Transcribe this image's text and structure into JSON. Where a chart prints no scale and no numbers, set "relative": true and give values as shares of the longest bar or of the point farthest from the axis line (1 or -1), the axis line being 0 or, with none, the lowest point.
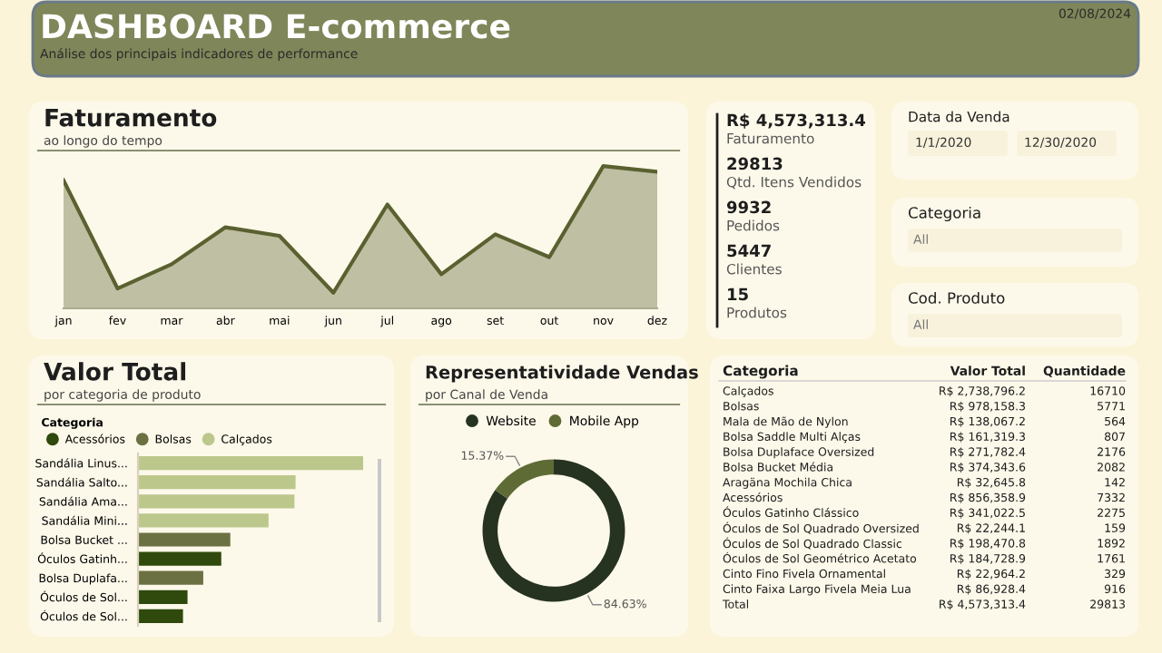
{
  "chart_data": [
    {
      "type": "other",
      "title": "DASHBOARD E-commerce",
      "subtitle": "Análise dos principais indicadores de performance",
      "annotations": [
        "02/08/2024"
      ]
    },
    {
      "type": "area",
      "title": "Faturamento",
      "subtitle": "ao longo do tempo",
      "relative": true,
      "categories": [
        "jan",
        "fev",
        "mar",
        "abr",
        "mai",
        "jun",
        "jul",
        "ago",
        "set",
        "out",
        "nov",
        "dez"
      ],
      "color": "#5a6130",
      "values": [
        0.9,
        0.14,
        0.31,
        0.57,
        0.51,
        0.11,
        0.73,
        0.24,
        0.52,
        0.36,
        1.0,
        0.96
      ]
    },
    {
      "type": "other",
      "annotations": [
        "R$ 4,573,313.4",
        "Faturamento",
        "29813",
        "Qtd. Itens Vendidos",
        "9932",
        "Pedidos",
        "5447",
        "Clientes",
        "15",
        "Produtos"
      ]
    },
    {
      "type": "other",
      "title": "Data da Venda",
      "annotations": [
        "1/1/2020",
        "12/30/2020"
      ]
    },
    {
      "type": "other",
      "title": "Categoria",
      "annotations": [
        "All"
      ]
    },
    {
      "type": "other",
      "title": "Cod. Produto",
      "annotations": [
        "All"
      ]
    },
    {
      "type": "bar",
      "title": "Valor Total",
      "subtitle": "por categoria de produto",
      "orientation": "horizontal",
      "relative": true,
      "stacked": true,
      "legend": "top left",
      "legend_title": "Categoria",
      "categories": [
        "Sandália Linus...",
        "Sandália Salto...",
        "Sandália Ama...",
        "Sandália Mini...",
        "Bolsa Bucket ...",
        "Óculos Gatinh...",
        "Bolsa Duplafa...",
        "Óculos de Sol...",
        "Óculos de Sol..."
      ],
      "series": [
        {
          "name": "Acessórios",
          "color": "#2f4a0c",
          "values": [
            null,
            null,
            null,
            null,
            null,
            0.37,
            null,
            0.22,
            0.2
          ]
        },
        {
          "name": "Bolsas",
          "color": "#6b7142",
          "values": [
            null,
            null,
            null,
            null,
            0.41,
            null,
            0.29,
            null,
            null
          ]
        },
        {
          "name": "Calçados",
          "color": "#bcc78c",
          "values": [
            1.0,
            0.7,
            0.695,
            0.58,
            null,
            null,
            null,
            null,
            null
          ]
        }
      ]
    },
    {
      "type": "donut",
      "title": "Representatividade Vendas",
      "subtitle": "por Canal de Venda",
      "legend": "top",
      "categories": [
        "Website",
        "Mobile App"
      ],
      "values": [
        84.63,
        15.37
      ],
      "colors": [
        "#263320",
        "#5e6b35"
      ],
      "value_labels": [
        "84.63%",
        "15.37%"
      ]
    },
    {
      "type": "other",
      "title": "Categoria",
      "categories": [
        "Calçados",
        "Bolsas",
        "Mala de Mão de Nylon",
        "Bolsa Saddle Multi Alças",
        "Bolsa Duplaface Oversized",
        "Bolsa Bucket Média",
        "Aragäna Mochila Chica",
        "Acessórios",
        "Óculos Gatinho Clássico",
        "Óculos de Sol Quadrado Oversized",
        "Óculos de Sol Quadrado Classic",
        "Óculos de Sol Geométrico Acetato",
        "Cinto Fino Fivela Ornamental",
        "Cinto Faixa Largo Fivela Meia Lua",
        "Total"
      ],
      "series": [
        {
          "name": "Valor Total",
          "values": [
            2738796.2,
            978158.3,
            138067.2,
            161319.3,
            271782.4,
            374343.6,
            32645.8,
            856358.9,
            341022.5,
            22244.1,
            198470.8,
            184728.9,
            22964.2,
            86928.4,
            4573313.4
          ],
          "value_labels": [
            "R$ 2,738,796.2",
            "R$ 978,158.3",
            "R$ 138,067.2",
            "R$ 161,319.3",
            "R$ 271,782.4",
            "R$ 374,343.6",
            "R$ 32,645.8",
            "R$ 856,358.9",
            "R$ 341,022.5",
            "R$ 22,244.1",
            "R$ 198,470.8",
            "R$ 184,728.9",
            "R$ 22,964.2",
            "R$ 86,928.4",
            "R$ 4,573,313.4"
          ]
        },
        {
          "name": "Quantidade",
          "values": [
            16710,
            5771,
            564,
            807,
            2176,
            2082,
            142,
            7332,
            2275,
            159,
            1892,
            1761,
            329,
            916,
            29813
          ],
          "value_labels": [
            "16710",
            "5771",
            "564",
            "807",
            "2176",
            "2082",
            "142",
            "7332",
            "2275",
            "159",
            "1892",
            "1761",
            "329",
            "916",
            "29813"
          ]
        }
      ]
    }
  ]
}
